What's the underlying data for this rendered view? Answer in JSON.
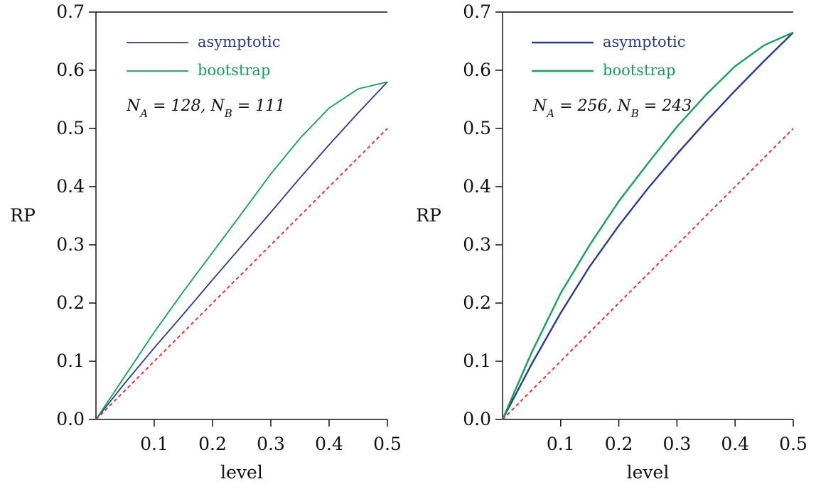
{
  "chart_data": [
    {
      "type": "line",
      "xlabel": "level",
      "ylabel": "RP",
      "xlim": [
        0,
        0.5
      ],
      "ylim": [
        0,
        0.7
      ],
      "xticks": [
        "0.1",
        "0.2",
        "0.3",
        "0.4",
        "0.5"
      ],
      "yticks": [
        "0.0",
        "0.1",
        "0.2",
        "0.3",
        "0.4",
        "0.5",
        "0.6",
        "0.7"
      ],
      "annotation": "N_A = 128, N_B = 111",
      "legend_position": "top-left",
      "series": [
        {
          "name": "asymptotic",
          "color": "#2b3a8c",
          "style": "solid",
          "x": [
            0,
            0.05,
            0.1,
            0.15,
            0.2,
            0.25,
            0.3,
            0.35,
            0.4,
            0.45,
            0.5
          ],
          "y": [
            0,
            0.063,
            0.123,
            0.181,
            0.24,
            0.298,
            0.356,
            0.415,
            0.472,
            0.527,
            0.58
          ]
        },
        {
          "name": "bootstrap",
          "color": "#12a05a",
          "style": "solid",
          "x": [
            0,
            0.05,
            0.1,
            0.15,
            0.2,
            0.25,
            0.3,
            0.35,
            0.4,
            0.45,
            0.5
          ],
          "y": [
            0,
            0.075,
            0.15,
            0.22,
            0.287,
            0.354,
            0.422,
            0.483,
            0.535,
            0.568,
            0.58
          ]
        },
        {
          "color": "#e0242b",
          "style": "dashed",
          "x": [
            0,
            0.5
          ],
          "y": [
            0,
            0.5
          ]
        }
      ]
    },
    {
      "type": "line",
      "xlabel": "level",
      "ylabel": "RP",
      "xlim": [
        0,
        0.5
      ],
      "ylim": [
        0,
        0.7
      ],
      "xticks": [
        "0.1",
        "0.2",
        "0.3",
        "0.4",
        "0.5"
      ],
      "yticks": [
        "0.0",
        "0.1",
        "0.2",
        "0.3",
        "0.4",
        "0.5",
        "0.6",
        "0.7"
      ],
      "annotation": "N_A = 256, N_B = 243",
      "legend_position": "top-left",
      "series": [
        {
          "name": "asymptotic",
          "color": "#2b3a8c",
          "style": "solid",
          "x": [
            0,
            0.05,
            0.1,
            0.15,
            0.2,
            0.25,
            0.3,
            0.35,
            0.4,
            0.45,
            0.5
          ],
          "y": [
            0,
            0.095,
            0.183,
            0.263,
            0.333,
            0.397,
            0.456,
            0.512,
            0.565,
            0.616,
            0.665
          ]
        },
        {
          "name": "bootstrap",
          "color": "#12a05a",
          "style": "solid",
          "x": [
            0,
            0.05,
            0.1,
            0.15,
            0.2,
            0.25,
            0.3,
            0.35,
            0.4,
            0.45,
            0.5
          ],
          "y": [
            0,
            0.115,
            0.217,
            0.3,
            0.375,
            0.44,
            0.503,
            0.558,
            0.607,
            0.643,
            0.665
          ]
        },
        {
          "color": "#e0242b",
          "style": "dashed",
          "x": [
            0,
            0.5
          ],
          "y": [
            0,
            0.5
          ]
        }
      ]
    }
  ]
}
